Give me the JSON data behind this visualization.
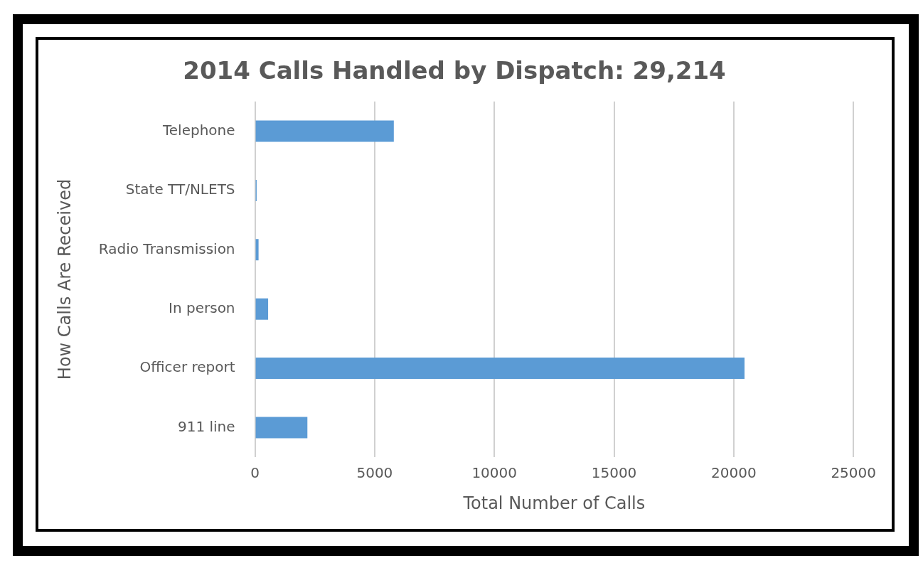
{
  "chart_data": {
    "type": "bar",
    "orientation": "horizontal",
    "title": "2014 Calls Handled by Dispatch: 29,214",
    "xlabel": "Total Number of Calls",
    "ylabel": "How Calls Are Received",
    "categories": [
      "Telephone",
      "State TT/NLETS",
      "Radio Transmission",
      "In person",
      "Officer report",
      "911 line"
    ],
    "values": [
      5800,
      70,
      150,
      550,
      20450,
      2190
    ],
    "color": "#5b9bd5",
    "xlim": [
      0,
      25000
    ],
    "xticks": [
      0,
      5000,
      10000,
      15000,
      20000,
      25000
    ],
    "grid": "x",
    "legend": false
  }
}
